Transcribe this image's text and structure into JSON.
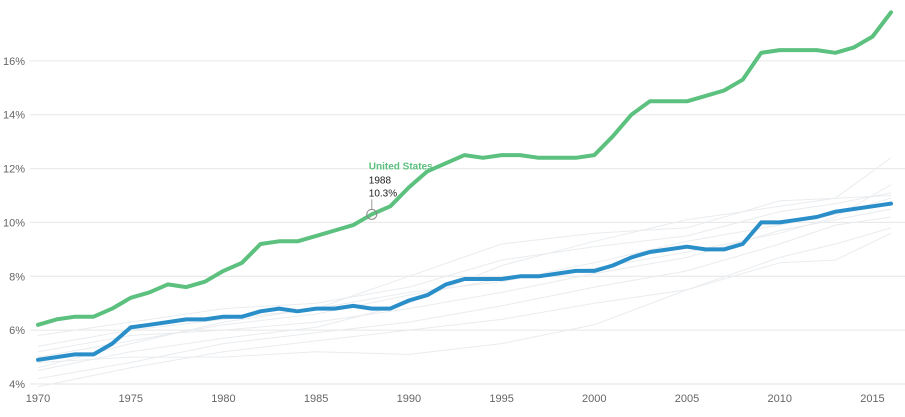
{
  "chart_data": {
    "type": "line",
    "title": "",
    "xlabel": "",
    "ylabel": "",
    "xlim": [
      1970,
      2016
    ],
    "ylim": [
      4,
      18
    ],
    "x_ticks": [
      "1970",
      "1975",
      "1980",
      "1985",
      "1990",
      "1995",
      "2000",
      "2005",
      "2010",
      "2015"
    ],
    "y_ticks": [
      "4%",
      "6%",
      "8%",
      "10%",
      "12%",
      "14%",
      "16%"
    ],
    "grid": "horizontal",
    "series": [
      {
        "name": "United States",
        "color": "#5cc07e",
        "highlight": true,
        "x": [
          1970,
          1971,
          1972,
          1973,
          1974,
          1975,
          1976,
          1977,
          1978,
          1979,
          1980,
          1981,
          1982,
          1983,
          1984,
          1985,
          1986,
          1987,
          1988,
          1989,
          1990,
          1991,
          1992,
          1993,
          1994,
          1995,
          1996,
          1997,
          1998,
          1999,
          2000,
          2001,
          2002,
          2003,
          2004,
          2005,
          2006,
          2007,
          2008,
          2009,
          2010,
          2011,
          2012,
          2013,
          2014,
          2015,
          2016
        ],
        "values": [
          6.2,
          6.4,
          6.5,
          6.5,
          6.8,
          7.2,
          7.4,
          7.7,
          7.6,
          7.8,
          8.2,
          8.5,
          9.2,
          9.3,
          9.3,
          9.5,
          9.7,
          9.9,
          10.3,
          10.6,
          11.3,
          11.9,
          12.2,
          12.5,
          12.4,
          12.5,
          12.5,
          12.4,
          12.4,
          12.4,
          12.5,
          13.2,
          14.0,
          14.5,
          14.5,
          14.5,
          14.7,
          14.9,
          15.3,
          16.3,
          16.4,
          16.4,
          16.4,
          16.3,
          16.5,
          16.9,
          17.8
        ]
      },
      {
        "name": "",
        "color": "#2a8ec9",
        "highlight": true,
        "x": [
          1970,
          1971,
          1972,
          1973,
          1974,
          1975,
          1976,
          1977,
          1978,
          1979,
          1980,
          1981,
          1982,
          1983,
          1984,
          1985,
          1986,
          1987,
          1988,
          1989,
          1990,
          1991,
          1992,
          1993,
          1994,
          1995,
          1996,
          1997,
          1998,
          1999,
          2000,
          2001,
          2002,
          2003,
          2004,
          2005,
          2006,
          2007,
          2008,
          2009,
          2010,
          2011,
          2012,
          2013,
          2014,
          2015,
          2016
        ],
        "values": [
          4.9,
          5.0,
          5.1,
          5.1,
          5.5,
          6.1,
          6.2,
          6.3,
          6.4,
          6.4,
          6.5,
          6.5,
          6.7,
          6.8,
          6.7,
          6.8,
          6.8,
          6.9,
          6.8,
          6.8,
          7.1,
          7.3,
          7.7,
          7.9,
          7.9,
          7.9,
          8.0,
          8.0,
          8.1,
          8.2,
          8.2,
          8.4,
          8.7,
          8.9,
          9.0,
          9.1,
          9.0,
          9.0,
          9.2,
          10.0,
          10.0,
          10.1,
          10.2,
          10.4,
          10.5,
          10.6,
          10.7
        ]
      },
      {
        "name": "",
        "color": "#e9ecef",
        "highlight": false,
        "x": [
          1970,
          1975,
          1980,
          1985,
          1990,
          1995,
          2000,
          2005,
          2010,
          2013,
          2016
        ],
        "values": [
          5.0,
          5.6,
          6.2,
          6.6,
          7.3,
          7.9,
          8.3,
          8.9,
          9.6,
          10.2,
          11.4
        ]
      },
      {
        "name": "",
        "color": "#e9ecef",
        "highlight": false,
        "x": [
          1970,
          1975,
          1980,
          1985,
          1990,
          1995,
          2000,
          2005,
          2010,
          2013,
          2016
        ],
        "values": [
          4.5,
          5.2,
          5.7,
          6.1,
          7.0,
          8.4,
          9.3,
          10.1,
          10.6,
          10.9,
          12.4
        ]
      },
      {
        "name": "",
        "color": "#e9ecef",
        "highlight": false,
        "x": [
          1970,
          1975,
          1980,
          1985,
          1990,
          1995,
          2000,
          2005,
          2010,
          2013,
          2016
        ],
        "values": [
          3.9,
          4.6,
          5.2,
          5.6,
          6.0,
          6.4,
          7.0,
          7.5,
          8.7,
          9.2,
          9.8
        ]
      },
      {
        "name": "",
        "color": "#e9ecef",
        "highlight": false,
        "x": [
          1970,
          1975,
          1980,
          1985,
          1990,
          1995,
          2000,
          2005,
          2010,
          2013,
          2016
        ],
        "values": [
          5.4,
          6.0,
          6.4,
          6.8,
          8.0,
          9.2,
          9.6,
          9.8,
          10.8,
          10.9,
          11.0
        ]
      },
      {
        "name": "",
        "color": "#e9ecef",
        "highlight": false,
        "x": [
          1970,
          1975,
          1980,
          1985,
          1990,
          1995,
          2000,
          2005,
          2010,
          2013,
          2016
        ],
        "values": [
          4.8,
          5.0,
          5.0,
          5.2,
          5.1,
          5.5,
          6.2,
          7.5,
          8.5,
          8.6,
          9.6
        ]
      },
      {
        "name": "",
        "color": "#e9ecef",
        "highlight": false,
        "x": [
          1970,
          1975,
          1980,
          1985,
          1990,
          1995,
          2000,
          2005,
          2010,
          2013,
          2016
        ],
        "values": [
          5.8,
          6.3,
          6.8,
          7.0,
          7.6,
          8.6,
          9.1,
          9.5,
          10.4,
          10.7,
          11.1
        ]
      },
      {
        "name": "",
        "color": "#e9ecef",
        "highlight": false,
        "x": [
          1970,
          1975,
          1980,
          1985,
          1990,
          1995,
          2000,
          2005,
          2010,
          2013,
          2016
        ],
        "values": [
          4.2,
          4.8,
          5.5,
          5.9,
          6.3,
          6.9,
          7.6,
          8.2,
          9.2,
          9.9,
          10.2
        ]
      },
      {
        "name": "",
        "color": "#e9ecef",
        "highlight": false,
        "x": [
          1970,
          1975,
          1980,
          1985,
          1990,
          1995,
          2000,
          2005,
          2010,
          2013,
          2016
        ],
        "values": [
          5.2,
          5.8,
          6.0,
          6.3,
          6.8,
          7.4,
          8.1,
          8.7,
          9.7,
          10.1,
          10.5
        ]
      },
      {
        "name": "",
        "color": "#e9ecef",
        "highlight": false,
        "x": [
          1970,
          1975,
          1980,
          1985,
          1990,
          1995,
          2000,
          2005,
          2010,
          2013,
          2016
        ],
        "values": [
          4.6,
          5.5,
          6.3,
          6.8,
          7.4,
          7.8,
          8.5,
          9.3,
          9.9,
          10.3,
          10.9
        ]
      }
    ],
    "annotation": {
      "series": "United States",
      "label": "United States",
      "x": "1988",
      "value": "10.3%"
    }
  }
}
